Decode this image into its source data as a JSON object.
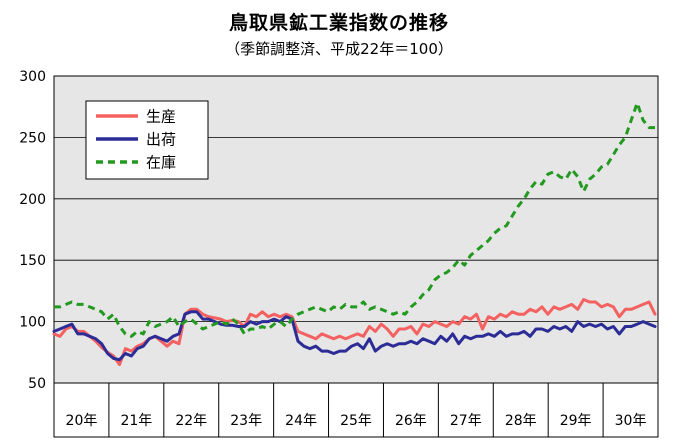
{
  "chart_data": {
    "type": "line",
    "title": "鳥取県鉱工業指数の推移",
    "subtitle": "（季節調整済、平成22年＝100）",
    "xlabel": "",
    "ylabel": "",
    "ylim": [
      50,
      300
    ],
    "yticks": [
      50,
      100,
      150,
      200,
      250,
      300
    ],
    "grid": true,
    "legend_position": "top-left",
    "x_unit": "month index (1 = start of 平成20年)",
    "year_labels": [
      "20年",
      "21年",
      "22年",
      "23年",
      "24年",
      "25年",
      "26年",
      "27年",
      "28年",
      "29年",
      "30年"
    ],
    "series": [
      {
        "name": "生産",
        "color": "#f46161",
        "style": "solid",
        "points": [
          [
            1,
            90
          ],
          [
            3,
            88
          ],
          [
            5,
            94
          ],
          [
            7,
            96
          ],
          [
            9,
            92
          ],
          [
            11,
            92
          ],
          [
            13,
            88
          ],
          [
            15,
            84
          ],
          [
            17,
            79
          ],
          [
            19,
            75
          ],
          [
            21,
            72
          ],
          [
            23,
            65
          ],
          [
            25,
            78
          ],
          [
            27,
            76
          ],
          [
            29,
            80
          ],
          [
            31,
            82
          ],
          [
            33,
            86
          ],
          [
            35,
            88
          ],
          [
            37,
            84
          ],
          [
            39,
            80
          ],
          [
            41,
            84
          ],
          [
            43,
            82
          ],
          [
            45,
            106
          ],
          [
            47,
            110
          ],
          [
            49,
            110
          ],
          [
            51,
            106
          ],
          [
            53,
            104
          ],
          [
            55,
            103
          ],
          [
            57,
            102
          ],
          [
            59,
            100
          ],
          [
            61,
            101
          ],
          [
            63,
            100
          ],
          [
            65,
            96
          ],
          [
            67,
            106
          ],
          [
            69,
            104
          ],
          [
            71,
            108
          ],
          [
            73,
            104
          ],
          [
            75,
            106
          ],
          [
            77,
            104
          ],
          [
            79,
            106
          ],
          [
            81,
            104
          ],
          [
            83,
            92
          ],
          [
            85,
            90
          ],
          [
            87,
            88
          ],
          [
            89,
            86
          ],
          [
            91,
            90
          ],
          [
            93,
            88
          ],
          [
            95,
            86
          ],
          [
            97,
            88
          ],
          [
            99,
            86
          ],
          [
            101,
            88
          ],
          [
            103,
            90
          ],
          [
            105,
            88
          ],
          [
            107,
            96
          ],
          [
            109,
            92
          ],
          [
            111,
            98
          ],
          [
            113,
            94
          ],
          [
            115,
            88
          ],
          [
            117,
            94
          ],
          [
            119,
            94
          ],
          [
            121,
            96
          ],
          [
            123,
            90
          ],
          [
            125,
            98
          ],
          [
            127,
            96
          ],
          [
            129,
            100
          ],
          [
            131,
            98
          ],
          [
            133,
            96
          ],
          [
            135,
            100
          ],
          [
            137,
            98
          ],
          [
            139,
            104
          ],
          [
            141,
            102
          ],
          [
            143,
            106
          ],
          [
            145,
            94
          ],
          [
            147,
            104
          ],
          [
            149,
            102
          ],
          [
            151,
            106
          ],
          [
            153,
            104
          ],
          [
            155,
            108
          ],
          [
            157,
            106
          ],
          [
            159,
            106
          ],
          [
            161,
            110
          ],
          [
            163,
            108
          ],
          [
            165,
            112
          ],
          [
            167,
            106
          ],
          [
            169,
            112
          ],
          [
            171,
            110
          ],
          [
            173,
            112
          ],
          [
            175,
            114
          ],
          [
            177,
            110
          ],
          [
            179,
            118
          ],
          [
            181,
            116
          ],
          [
            183,
            116
          ],
          [
            185,
            112
          ],
          [
            187,
            114
          ],
          [
            189,
            112
          ],
          [
            191,
            104
          ],
          [
            193,
            110
          ],
          [
            195,
            110
          ],
          [
            197,
            112
          ],
          [
            199,
            114
          ],
          [
            201,
            116
          ],
          [
            203,
            106
          ]
        ]
      },
      {
        "name": "出荷",
        "color": "#2c2c96",
        "style": "solid",
        "points": [
          [
            1,
            92
          ],
          [
            3,
            94
          ],
          [
            5,
            96
          ],
          [
            7,
            98
          ],
          [
            9,
            90
          ],
          [
            11,
            90
          ],
          [
            13,
            88
          ],
          [
            15,
            86
          ],
          [
            17,
            82
          ],
          [
            19,
            74
          ],
          [
            21,
            70
          ],
          [
            23,
            69
          ],
          [
            25,
            74
          ],
          [
            27,
            72
          ],
          [
            29,
            78
          ],
          [
            31,
            80
          ],
          [
            33,
            86
          ],
          [
            35,
            88
          ],
          [
            37,
            86
          ],
          [
            39,
            84
          ],
          [
            41,
            88
          ],
          [
            43,
            90
          ],
          [
            45,
            106
          ],
          [
            47,
            108
          ],
          [
            49,
            108
          ],
          [
            51,
            102
          ],
          [
            53,
            102
          ],
          [
            55,
            100
          ],
          [
            57,
            98
          ],
          [
            59,
            97
          ],
          [
            61,
            97
          ],
          [
            63,
            96
          ],
          [
            65,
            96
          ],
          [
            67,
            100
          ],
          [
            69,
            98
          ],
          [
            71,
            100
          ],
          [
            73,
            100
          ],
          [
            75,
            102
          ],
          [
            77,
            100
          ],
          [
            79,
            104
          ],
          [
            81,
            102
          ],
          [
            83,
            84
          ],
          [
            85,
            80
          ],
          [
            87,
            78
          ],
          [
            89,
            80
          ],
          [
            91,
            76
          ],
          [
            93,
            76
          ],
          [
            95,
            74
          ],
          [
            97,
            76
          ],
          [
            99,
            76
          ],
          [
            101,
            80
          ],
          [
            103,
            82
          ],
          [
            105,
            78
          ],
          [
            107,
            86
          ],
          [
            109,
            76
          ],
          [
            111,
            80
          ],
          [
            113,
            82
          ],
          [
            115,
            80
          ],
          [
            117,
            82
          ],
          [
            119,
            82
          ],
          [
            121,
            84
          ],
          [
            123,
            82
          ],
          [
            125,
            86
          ],
          [
            127,
            84
          ],
          [
            129,
            82
          ],
          [
            131,
            88
          ],
          [
            133,
            84
          ],
          [
            135,
            90
          ],
          [
            137,
            82
          ],
          [
            139,
            88
          ],
          [
            141,
            86
          ],
          [
            143,
            88
          ],
          [
            145,
            88
          ],
          [
            147,
            90
          ],
          [
            149,
            88
          ],
          [
            151,
            92
          ],
          [
            153,
            88
          ],
          [
            155,
            90
          ],
          [
            157,
            90
          ],
          [
            159,
            92
          ],
          [
            161,
            88
          ],
          [
            163,
            94
          ],
          [
            165,
            94
          ],
          [
            167,
            92
          ],
          [
            169,
            96
          ],
          [
            171,
            94
          ],
          [
            173,
            96
          ],
          [
            175,
            92
          ],
          [
            177,
            100
          ],
          [
            179,
            96
          ],
          [
            181,
            98
          ],
          [
            183,
            96
          ],
          [
            185,
            98
          ],
          [
            187,
            94
          ],
          [
            189,
            96
          ],
          [
            191,
            90
          ],
          [
            193,
            96
          ],
          [
            195,
            96
          ],
          [
            197,
            98
          ],
          [
            199,
            100
          ],
          [
            201,
            98
          ],
          [
            203,
            96
          ]
        ]
      },
      {
        "name": "在庫",
        "color": "#22991f",
        "style": "dashed",
        "points": [
          [
            1,
            112
          ],
          [
            3,
            112
          ],
          [
            5,
            114
          ],
          [
            7,
            116
          ],
          [
            9,
            114
          ],
          [
            11,
            114
          ],
          [
            13,
            112
          ],
          [
            15,
            110
          ],
          [
            17,
            108
          ],
          [
            19,
            102
          ],
          [
            21,
            106
          ],
          [
            23,
            96
          ],
          [
            25,
            90
          ],
          [
            27,
            88
          ],
          [
            29,
            92
          ],
          [
            31,
            90
          ],
          [
            33,
            100
          ],
          [
            35,
            96
          ],
          [
            37,
            98
          ],
          [
            39,
            100
          ],
          [
            41,
            104
          ],
          [
            43,
            96
          ],
          [
            45,
            100
          ],
          [
            47,
            102
          ],
          [
            49,
            98
          ],
          [
            51,
            94
          ],
          [
            53,
            96
          ],
          [
            55,
            98
          ],
          [
            57,
            100
          ],
          [
            59,
            98
          ],
          [
            61,
            102
          ],
          [
            63,
            98
          ],
          [
            65,
            90
          ],
          [
            67,
            94
          ],
          [
            69,
            94
          ],
          [
            71,
            96
          ],
          [
            73,
            94
          ],
          [
            75,
            98
          ],
          [
            77,
            100
          ],
          [
            79,
            96
          ],
          [
            81,
            102
          ],
          [
            83,
            106
          ],
          [
            85,
            108
          ],
          [
            87,
            110
          ],
          [
            89,
            112
          ],
          [
            91,
            110
          ],
          [
            93,
            108
          ],
          [
            95,
            112
          ],
          [
            97,
            110
          ],
          [
            99,
            114
          ],
          [
            101,
            112
          ],
          [
            103,
            112
          ],
          [
            105,
            116
          ],
          [
            107,
            110
          ],
          [
            109,
            112
          ],
          [
            111,
            110
          ],
          [
            113,
            108
          ],
          [
            115,
            106
          ],
          [
            117,
            108
          ],
          [
            119,
            106
          ],
          [
            121,
            112
          ],
          [
            123,
            116
          ],
          [
            125,
            122
          ],
          [
            127,
            126
          ],
          [
            129,
            134
          ],
          [
            131,
            138
          ],
          [
            133,
            140
          ],
          [
            135,
            144
          ],
          [
            137,
            150
          ],
          [
            139,
            146
          ],
          [
            141,
            154
          ],
          [
            143,
            158
          ],
          [
            145,
            162
          ],
          [
            147,
            166
          ],
          [
            149,
            172
          ],
          [
            151,
            176
          ],
          [
            153,
            178
          ],
          [
            155,
            186
          ],
          [
            157,
            194
          ],
          [
            159,
            200
          ],
          [
            161,
            208
          ],
          [
            163,
            214
          ],
          [
            165,
            212
          ],
          [
            167,
            220
          ],
          [
            169,
            222
          ],
          [
            171,
            218
          ],
          [
            173,
            216
          ],
          [
            175,
            224
          ],
          [
            177,
            218
          ],
          [
            179,
            206
          ],
          [
            181,
            216
          ],
          [
            183,
            220
          ],
          [
            185,
            226
          ],
          [
            187,
            228
          ],
          [
            189,
            236
          ],
          [
            191,
            244
          ],
          [
            193,
            250
          ],
          [
            195,
            264
          ],
          [
            197,
            278
          ],
          [
            199,
            264
          ],
          [
            201,
            258
          ],
          [
            203,
            258
          ]
        ]
      }
    ]
  }
}
